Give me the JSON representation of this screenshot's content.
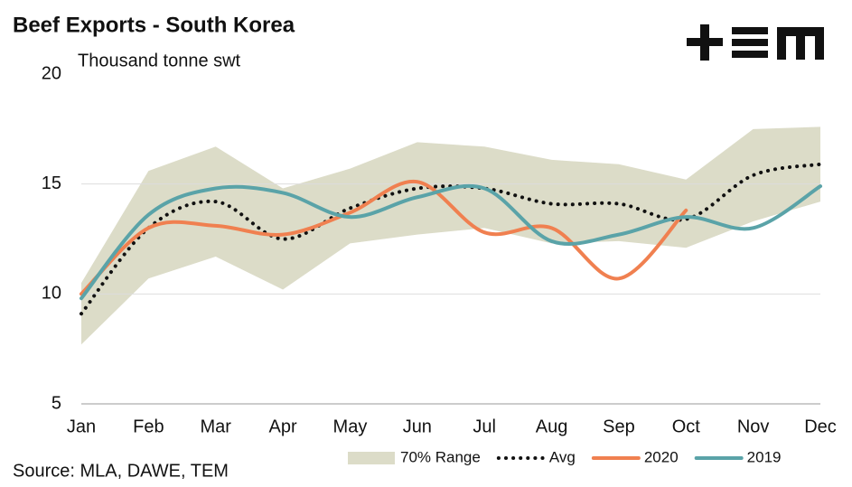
{
  "chart_data": {
    "type": "line",
    "title": "Beef Exports - South Korea",
    "subtitle": "Thousand tonne swt",
    "source": "Source: MLA, DAWE, TEM",
    "categories": [
      "Jan",
      "Feb",
      "Mar",
      "Apr",
      "May",
      "Jun",
      "Jul",
      "Aug",
      "Sep",
      "Oct",
      "Nov",
      "Dec"
    ],
    "ylim": [
      5,
      20
    ],
    "yticks": [
      5,
      10,
      15,
      20
    ],
    "grid": true,
    "range": {
      "name": "70% Range",
      "color": "#dcdcc8",
      "high": [
        10.5,
        15.6,
        16.7,
        14.8,
        15.7,
        16.9,
        16.7,
        16.1,
        15.9,
        15.2,
        17.5,
        17.6
      ],
      "low": [
        7.7,
        10.7,
        11.7,
        10.2,
        12.3,
        12.7,
        13.0,
        12.3,
        12.4,
        12.1,
        13.3,
        14.2
      ]
    },
    "series": [
      {
        "name": "Avg",
        "color": "#111111",
        "dotted": true,
        "values": [
          9.1,
          13.0,
          14.2,
          12.5,
          13.9,
          14.8,
          14.8,
          14.1,
          14.1,
          13.4,
          15.4,
          15.9
        ]
      },
      {
        "name": "2020",
        "color": "#f08050",
        "values": [
          10.0,
          13.0,
          13.1,
          12.7,
          13.7,
          15.1,
          12.8,
          13.0,
          10.7,
          13.8,
          null,
          null
        ]
      },
      {
        "name": "2019",
        "color": "#5aa3a8",
        "values": [
          9.8,
          13.6,
          14.8,
          14.6,
          13.5,
          14.4,
          14.8,
          12.4,
          12.7,
          13.5,
          13.0,
          14.9
        ]
      }
    ]
  }
}
